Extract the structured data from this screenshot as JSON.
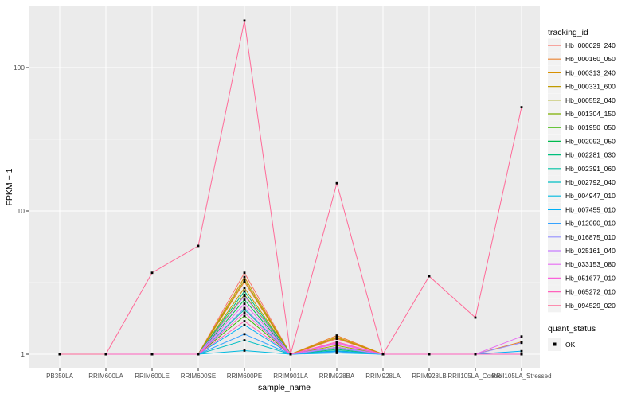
{
  "figure": {
    "ylabel": "FPKM + 1",
    "xlabel": "sample_name",
    "legend_tracking_title": "tracking_id",
    "legend_quant_title": "quant_status",
    "quant_items": [
      {
        "label": "OK"
      }
    ]
  },
  "colors": {
    "panel_bg": "#EBEBEB",
    "grid": "#FFFFFF",
    "tick_mark": "#333333",
    "tick_text": "#4D4D4D",
    "axis_title": "#000000",
    "legend_key_bg": "#F2F2F2",
    "point": "#000000"
  },
  "chart_data": {
    "type": "line",
    "scale_y": "log10",
    "xlabel": "sample_name",
    "ylabel": "FPKM + 1",
    "grid": true,
    "legend_position": "right",
    "x_categories": [
      "PB350LA",
      "RRIM600LA",
      "RRIM600LE",
      "RRIM600SE",
      "RRIM600PE",
      "RRIM901LA",
      "RRIM928BA",
      "RRIM928LA",
      "RRIM928LB",
      "RRII105LA_Control",
      "RRII105LA_Stressed"
    ],
    "y_ticks": [
      {
        "value": 1,
        "label": "1"
      },
      {
        "value": 10,
        "label": "10"
      },
      {
        "value": 100,
        "label": "100"
      }
    ],
    "y_minor_ticks": [
      3.1623,
      31.623
    ],
    "y_range_approx": [
      0.8,
      270
    ],
    "point_legend": {
      "title": "quant_status",
      "items": [
        {
          "label": "OK"
        }
      ]
    },
    "series": [
      {
        "name": "Hb_000029_240",
        "color": "#F8766D",
        "values": [
          1,
          1,
          1,
          1,
          3.7,
          1,
          1.28,
          1,
          1,
          1,
          1
        ]
      },
      {
        "name": "Hb_000160_050",
        "color": "#EA8331",
        "values": [
          1,
          1,
          1,
          1,
          3.2,
          1,
          1.35,
          1,
          1,
          1,
          1.22
        ]
      },
      {
        "name": "Hb_000313_240",
        "color": "#D89000",
        "values": [
          1,
          1,
          1,
          1,
          3.45,
          1,
          1.32,
          1,
          1,
          1,
          1
        ]
      },
      {
        "name": "Hb_000331_600",
        "color": "#C09B00",
        "values": [
          1,
          1,
          1,
          1,
          2.9,
          1,
          1.3,
          1,
          1,
          1,
          1
        ]
      },
      {
        "name": "Hb_000552_040",
        "color": "#A3A500",
        "values": [
          1,
          1,
          1,
          1,
          3.3,
          1,
          1.15,
          1,
          1,
          1,
          1
        ]
      },
      {
        "name": "Hb_001304_150",
        "color": "#7CAE00",
        "values": [
          1,
          1,
          1,
          1,
          2.6,
          1,
          1.1,
          1,
          1,
          1,
          1
        ]
      },
      {
        "name": "Hb_001950_050",
        "color": "#39B600",
        "values": [
          1,
          1,
          1,
          1,
          1.85,
          1,
          1.12,
          1,
          1,
          1,
          1
        ]
      },
      {
        "name": "Hb_002092_050",
        "color": "#00BB4E",
        "values": [
          1,
          1,
          1,
          1,
          2.4,
          1,
          1.05,
          1,
          1,
          1,
          1
        ]
      },
      {
        "name": "Hb_002281_030",
        "color": "#00BF7D",
        "values": [
          1,
          1,
          1,
          1,
          2.75,
          1,
          1.08,
          1,
          1,
          1,
          1
        ]
      },
      {
        "name": "Hb_002391_060",
        "color": "#00C1A3",
        "values": [
          1,
          1,
          1,
          1,
          2.05,
          1,
          1.06,
          1,
          1,
          1,
          1
        ]
      },
      {
        "name": "Hb_002792_040",
        "color": "#00BFC4",
        "values": [
          1,
          1,
          1,
          1,
          1.25,
          1,
          1.04,
          1,
          1,
          1,
          1
        ]
      },
      {
        "name": "Hb_004947_010",
        "color": "#00BAE0",
        "values": [
          1,
          1,
          1,
          1,
          1.06,
          1,
          1.02,
          1,
          1,
          1,
          1
        ]
      },
      {
        "name": "Hb_007455_010",
        "color": "#00B0F6",
        "values": [
          1,
          1,
          1,
          1,
          1.6,
          1,
          1.05,
          1,
          1,
          1,
          1.05
        ]
      },
      {
        "name": "Hb_012090_010",
        "color": "#35A2FF",
        "values": [
          1,
          1,
          1,
          1,
          1.38,
          1,
          1.04,
          1,
          1,
          1,
          1
        ]
      },
      {
        "name": "Hb_016875_010",
        "color": "#9590FF",
        "values": [
          1,
          1,
          1,
          1,
          2.1,
          1,
          1.1,
          1,
          1,
          1,
          1.2
        ]
      },
      {
        "name": "Hb_025161_040",
        "color": "#C77CFF",
        "values": [
          1,
          1,
          1,
          1,
          2.55,
          1,
          1.12,
          1,
          1,
          1,
          1
        ]
      },
      {
        "name": "Hb_033153_080",
        "color": "#E76BF3",
        "values": [
          1,
          1,
          1,
          1,
          2.25,
          1,
          1.18,
          1,
          1,
          1,
          1.33
        ]
      },
      {
        "name": "Hb_051677_010",
        "color": "#FA62DB",
        "values": [
          1,
          1,
          1,
          1,
          1.95,
          1,
          1.2,
          1,
          1,
          1,
          1
        ]
      },
      {
        "name": "Hb_065272_010",
        "color": "#FF62BC",
        "values": [
          1,
          1,
          1,
          1,
          1.7,
          1,
          1.22,
          1,
          1,
          1,
          1
        ]
      },
      {
        "name": "Hb_094529_020",
        "color": "#FF6A98",
        "values": [
          1,
          1,
          3.7,
          5.7,
          213,
          1,
          15.6,
          1,
          3.5,
          1.8,
          53
        ]
      }
    ]
  }
}
